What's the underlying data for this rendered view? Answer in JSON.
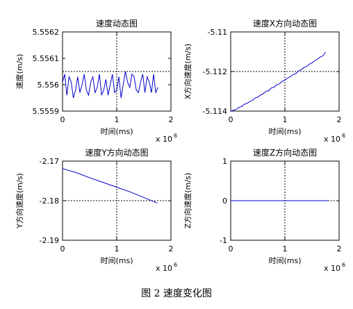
{
  "caption": "图 2  速度变化图",
  "chart_data": [
    {
      "type": "line",
      "title": "速度动态图",
      "xlabel": "时间(ms)",
      "ylabel": "速度(m/s)",
      "x_exponent_label": "x 10",
      "x_exponent_power": "6",
      "xlim": [
        0,
        2
      ],
      "ylim": [
        5.5559,
        5.5562
      ],
      "xticks": [
        0,
        1,
        2
      ],
      "xtick_labels": [
        "0",
        "1",
        "2"
      ],
      "yticks": [
        5.5559,
        5.556,
        5.5561,
        5.5562
      ],
      "ytick_labels": [
        "5.5559",
        "5.556",
        "5.5561",
        "5.5562"
      ],
      "grid": "dotted at center tick",
      "line_color": "#0000cc",
      "series": [
        {
          "x": [
            0,
            0.04,
            0.08,
            0.12,
            0.16,
            0.2,
            0.24,
            0.28,
            0.32,
            0.36,
            0.4,
            0.44,
            0.48,
            0.52,
            0.56,
            0.6,
            0.64,
            0.68,
            0.72,
            0.76,
            0.8,
            0.84,
            0.88,
            0.92,
            0.96,
            1.0,
            1.04,
            1.08,
            1.12,
            1.16,
            1.2,
            1.24,
            1.28,
            1.32,
            1.36,
            1.4,
            1.44,
            1.48,
            1.52,
            1.56,
            1.6,
            1.64,
            1.68,
            1.72,
            1.76
          ],
          "values": [
            5.55601,
            5.55604,
            5.55596,
            5.55603,
            5.55601,
            5.55595,
            5.55598,
            5.55603,
            5.55597,
            5.556,
            5.55604,
            5.55598,
            5.55596,
            5.55601,
            5.55603,
            5.55597,
            5.55599,
            5.55604,
            5.55596,
            5.55598,
            5.55602,
            5.55596,
            5.556,
            5.55604,
            5.55597,
            5.55598,
            5.55603,
            5.55595,
            5.556,
            5.55605,
            5.55601,
            5.55599,
            5.55604,
            5.55603,
            5.55598,
            5.55597,
            5.55601,
            5.55604,
            5.55597,
            5.55603,
            5.55601,
            5.55597,
            5.55604,
            5.55597,
            5.55599
          ]
        }
      ]
    },
    {
      "type": "line",
      "title": "速度X方向动态图",
      "xlabel": "时间(ms)",
      "ylabel": "X方向速度(m/s)",
      "x_exponent_label": "x 10",
      "x_exponent_power": "6",
      "xlim": [
        0,
        2
      ],
      "ylim": [
        -5.114,
        -5.11
      ],
      "xticks": [
        0,
        1,
        2
      ],
      "xtick_labels": [
        "0",
        "1",
        "2"
      ],
      "yticks": [
        -5.114,
        -5.112,
        -5.11
      ],
      "ytick_labels": [
        "-5.114",
        "-5.112",
        "-5.11"
      ],
      "grid": "dotted at center tick",
      "line_color": "#0000cc",
      "series": [
        {
          "x": [
            0,
            0.05,
            0.1,
            0.15,
            0.2,
            0.25,
            0.3,
            0.35,
            0.4,
            0.45,
            0.5,
            0.55,
            0.6,
            0.65,
            0.7,
            0.75,
            0.8,
            0.85,
            0.9,
            0.95,
            1.0,
            1.05,
            1.1,
            1.15,
            1.2,
            1.25,
            1.3,
            1.35,
            1.4,
            1.45,
            1.5,
            1.55,
            1.6,
            1.65,
            1.7,
            1.75
          ],
          "values": [
            -5.11402,
            -5.11395,
            -5.11392,
            -5.11381,
            -5.11377,
            -5.11366,
            -5.11361,
            -5.11352,
            -5.11346,
            -5.11334,
            -5.11329,
            -5.11319,
            -5.11312,
            -5.113,
            -5.11297,
            -5.11283,
            -5.11279,
            -5.11267,
            -5.11262,
            -5.11249,
            -5.11244,
            -5.11233,
            -5.11226,
            -5.11215,
            -5.11211,
            -5.11197,
            -5.11191,
            -5.1118,
            -5.11174,
            -5.11163,
            -5.11156,
            -5.11146,
            -5.11138,
            -5.11127,
            -5.11121,
            -5.11102
          ]
        }
      ]
    },
    {
      "type": "line",
      "title": "速度Y方向动态图",
      "xlabel": "时间(ms)",
      "ylabel": "Y方向速度(m/s)",
      "x_exponent_label": "x 10",
      "x_exponent_power": "6",
      "xlim": [
        0,
        2
      ],
      "ylim": [
        -2.19,
        -2.17
      ],
      "xticks": [
        0,
        1,
        2
      ],
      "xtick_labels": [
        "0",
        "1",
        "2"
      ],
      "yticks": [
        -2.19,
        -2.18,
        -2.17
      ],
      "ytick_labels": [
        "-2.19",
        "-2.18",
        "-2.17"
      ],
      "grid": "dotted at center tick",
      "line_color": "#0000cc",
      "series": [
        {
          "x": [
            0,
            0.25,
            0.5,
            0.75,
            1.0,
            1.25,
            1.5,
            1.75
          ],
          "values": [
            -2.1719,
            -2.1729,
            -2.1742,
            -2.1754,
            -2.1766,
            -2.1778,
            -2.1792,
            -2.1806
          ]
        }
      ]
    },
    {
      "type": "line",
      "title": "速度Z方向动态图",
      "xlabel": "时间(ms)",
      "ylabel": "Z方向速度(m/s)",
      "x_exponent_label": "x 10",
      "x_exponent_power": "6",
      "xlim": [
        0,
        2
      ],
      "ylim": [
        -1,
        1
      ],
      "xticks": [
        0,
        1,
        2
      ],
      "xtick_labels": [
        "0",
        "1",
        "2"
      ],
      "yticks": [
        -1,
        0,
        1
      ],
      "ytick_labels": [
        "-1",
        "0",
        "1"
      ],
      "grid": "dotted at center tick",
      "line_color": "#0000cc",
      "series": [
        {
          "x": [
            0,
            1.8
          ],
          "values": [
            0,
            0
          ]
        }
      ]
    }
  ]
}
